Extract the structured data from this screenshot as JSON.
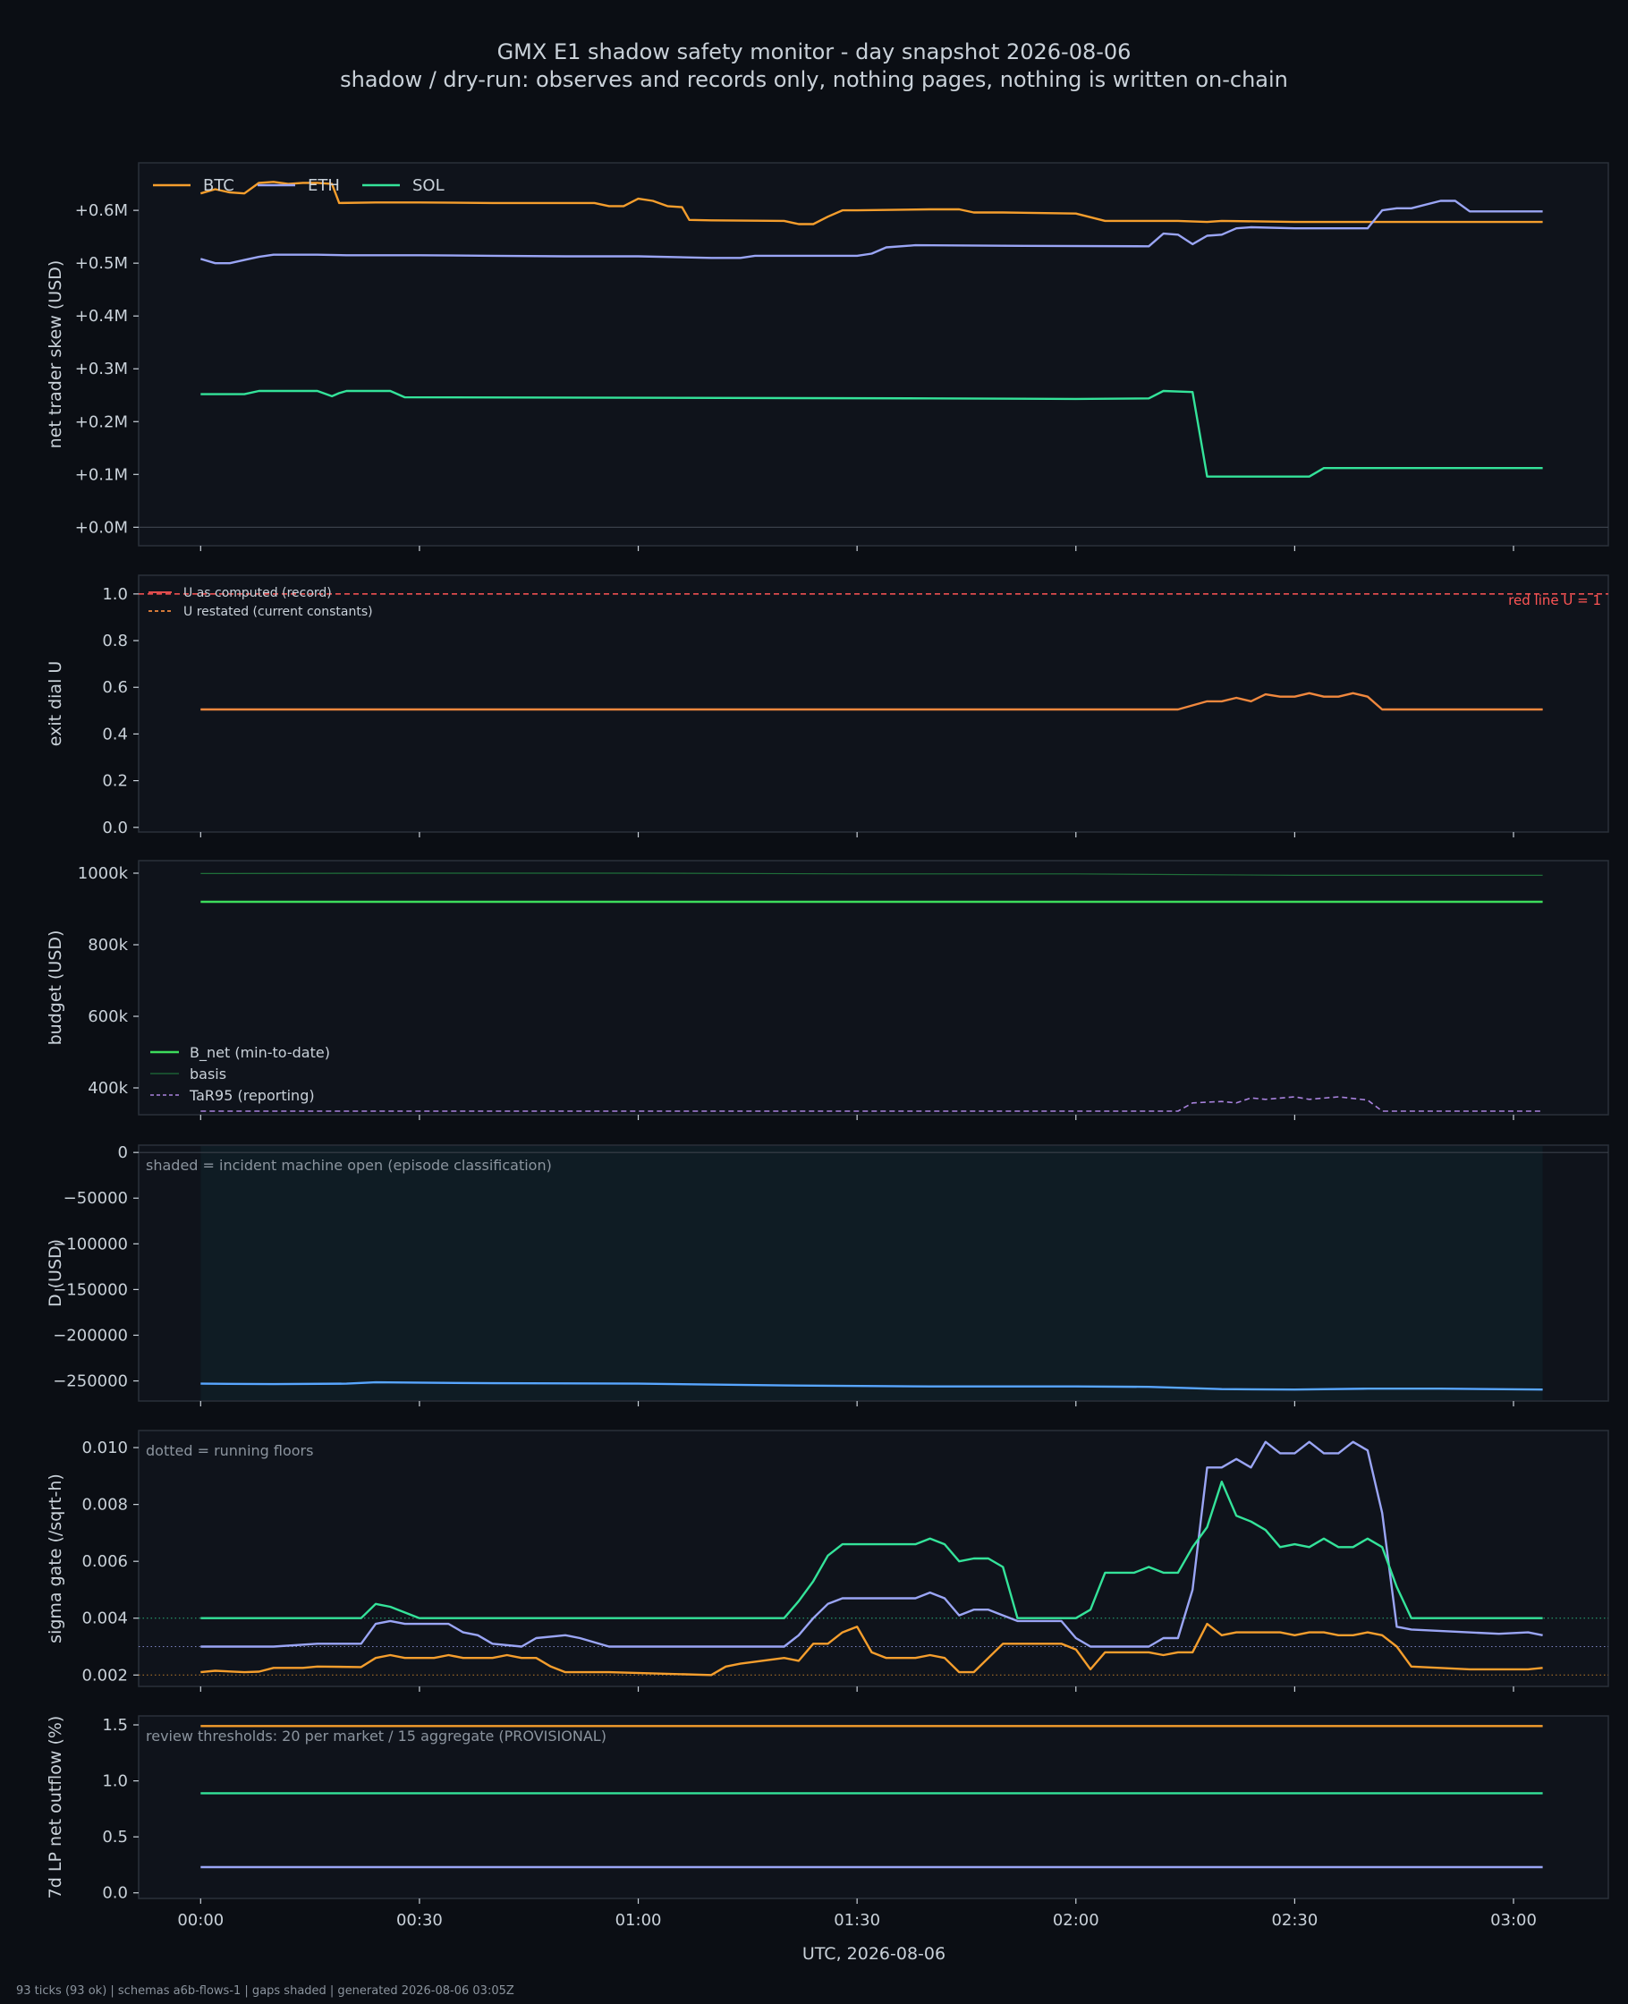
{
  "header": {
    "title": "GMX E1 shadow safety monitor - day snapshot 2026-08-06",
    "subtitle": "shadow / dry-run: observes and records only, nothing pages, nothing is written on-chain"
  },
  "footer": "93 ticks (93 ok) | schemas a6b-flows-1 | gaps shaded | generated 2026-08-06 03:05Z",
  "xaxis": {
    "label": "UTC, 2026-08-06",
    "ticks": [
      0,
      30,
      60,
      90,
      120,
      150,
      180
    ],
    "tick_labels": [
      "00:00",
      "00:30",
      "01:00",
      "01:30",
      "02:00",
      "02:30",
      "03:00"
    ],
    "xlim": [
      -8.5,
      193
    ]
  },
  "colors": {
    "background": "#0b0e14",
    "panel": "#0f131b",
    "panel_border": "#2a303a",
    "text": "#c9d1d9",
    "muted": "#8b949e",
    "btc": "#f59e2d",
    "eth": "#9aa5f5",
    "sol": "#34e39a",
    "u_record": "#f0883e",
    "redline": "#ff5555",
    "b_net": "#3ddc5c",
    "basis": "#1f6f3a",
    "tar95": "#a882dd",
    "d_line": "#58a6ff",
    "incident": "#0f1c24"
  },
  "chart_data": [
    {
      "type": "line",
      "ylabel": "net trader skew (USD)",
      "ylim": [
        -35000,
        690000
      ],
      "yticks": [
        0,
        100000,
        200000,
        300000,
        400000,
        500000,
        600000
      ],
      "ytick_labels": [
        "+0.0M",
        "+0.1M",
        "+0.2M",
        "+0.3M",
        "+0.4M",
        "+0.5M",
        "+0.6M"
      ],
      "zero_line": true,
      "legend": "top-left",
      "legend_style": "horizontal",
      "series": [
        {
          "name": "BTC",
          "color_key": "btc",
          "x": [
            0,
            2,
            4,
            6,
            8,
            10,
            12,
            14,
            16,
            18,
            19,
            24,
            30,
            40,
            50,
            54,
            56,
            58,
            60,
            62,
            64,
            66,
            67,
            70,
            80,
            82,
            84,
            86,
            88,
            90,
            100,
            104,
            106,
            110,
            120,
            124,
            134,
            138,
            140,
            150,
            170,
            184
          ],
          "y": [
            632000,
            640000,
            634000,
            632000,
            652000,
            654000,
            650000,
            652000,
            652000,
            650000,
            614000,
            615000,
            615000,
            614000,
            614000,
            614000,
            608000,
            608000,
            622000,
            618000,
            608000,
            606000,
            582000,
            581000,
            580000,
            574000,
            574000,
            588000,
            600000,
            600000,
            602000,
            602000,
            596000,
            596000,
            594000,
            580000,
            580000,
            578000,
            580000,
            578000,
            578000,
            578000
          ]
        },
        {
          "name": "ETH",
          "color_key": "eth",
          "x": [
            0,
            2,
            4,
            6,
            8,
            10,
            12,
            16,
            20,
            30,
            40,
            50,
            60,
            70,
            74,
            76,
            90,
            92,
            94,
            98,
            110,
            130,
            132,
            134,
            136,
            138,
            140,
            142,
            144,
            150,
            160,
            162,
            164,
            166,
            170,
            172,
            174,
            184
          ],
          "y": [
            508000,
            500000,
            500000,
            506000,
            512000,
            516000,
            516000,
            516000,
            515000,
            515000,
            514000,
            513000,
            513000,
            510000,
            510000,
            514000,
            514000,
            518000,
            530000,
            534000,
            533000,
            532000,
            556000,
            554000,
            536000,
            552000,
            554000,
            566000,
            568000,
            566000,
            566000,
            600000,
            604000,
            604000,
            618000,
            618000,
            598000,
            598000
          ]
        },
        {
          "name": "SOL",
          "color_key": "sol",
          "x": [
            0,
            6,
            8,
            16,
            18,
            19,
            20,
            26,
            28,
            100,
            120,
            130,
            132,
            136,
            138,
            152,
            154,
            184
          ],
          "y": [
            252000,
            252000,
            258000,
            258000,
            248000,
            254000,
            258000,
            258000,
            246000,
            244000,
            243000,
            244000,
            258000,
            256000,
            96000,
            96000,
            112000,
            112000
          ]
        }
      ]
    },
    {
      "type": "line",
      "ylabel": "exit dial U",
      "ylim": [
        -0.02,
        1.08
      ],
      "yticks": [
        0,
        0.2,
        0.4,
        0.6,
        0.8,
        1
      ],
      "ytick_labels": [
        "0.0",
        "0.2",
        "0.4",
        "0.6",
        "0.8",
        "1.0"
      ],
      "legend": "top-left",
      "legend_style": "vertical-small",
      "refline": {
        "y": 1.0,
        "color_key": "redline",
        "label": "red line U = 1"
      },
      "series": [
        {
          "name": "U as computed (record)",
          "color_key": "u_record",
          "style": "solid",
          "in_legend_color": "redline",
          "x": [
            0,
            134,
            138,
            140,
            142,
            144,
            146,
            148,
            150,
            152,
            154,
            156,
            158,
            160,
            162,
            164,
            166,
            184
          ],
          "y": [
            0.505,
            0.505,
            0.54,
            0.54,
            0.555,
            0.54,
            0.57,
            0.56,
            0.56,
            0.575,
            0.56,
            0.56,
            0.575,
            0.56,
            0.505,
            0.505,
            0.505,
            0.505
          ]
        },
        {
          "name": "U restated (current constants)",
          "color_key": "u_record",
          "style": "dashed",
          "x": [
            0,
            134,
            138,
            140,
            142,
            144,
            146,
            148,
            150,
            152,
            154,
            156,
            158,
            160,
            162,
            164,
            166,
            184
          ],
          "y": [
            0.505,
            0.505,
            0.54,
            0.54,
            0.555,
            0.54,
            0.57,
            0.56,
            0.56,
            0.575,
            0.56,
            0.56,
            0.575,
            0.56,
            0.505,
            0.505,
            0.505,
            0.505
          ]
        }
      ]
    },
    {
      "type": "line",
      "ylabel": "budget (USD)",
      "ylim": [
        325000,
        1035000
      ],
      "yticks": [
        400000,
        600000,
        800000,
        1000000
      ],
      "ytick_labels": [
        "400k",
        "600k",
        "800k",
        "1000k"
      ],
      "legend": "lower-left",
      "legend_style": "vertical",
      "series": [
        {
          "name": "B_net (min-to-date)",
          "color_key": "b_net",
          "style": "solid",
          "x": [
            0,
            184
          ],
          "y": [
            920000,
            920000
          ]
        },
        {
          "name": "basis",
          "color_key": "basis",
          "style": "thin",
          "x": [
            0,
            30,
            60,
            90,
            120,
            150,
            184
          ],
          "y": [
            999000,
            1000000,
            1000000,
            998000,
            998000,
            994000,
            994000
          ]
        },
        {
          "name": "TaR95 (reporting)",
          "color_key": "tar95",
          "style": "dashed",
          "x": [
            0,
            134,
            136,
            140,
            142,
            144,
            146,
            150,
            152,
            156,
            160,
            162,
            184
          ],
          "y": [
            335000,
            335000,
            358000,
            362000,
            358000,
            372000,
            368000,
            375000,
            368000,
            375000,
            366000,
            335000,
            335000
          ]
        }
      ]
    },
    {
      "type": "line",
      "ylabel": "D (USD)",
      "ylim": [
        -272000,
        8000
      ],
      "yticks": [
        0,
        -50000,
        -100000,
        -150000,
        -200000,
        -250000
      ],
      "ytick_labels": [
        "0",
        "−50000",
        "−100000",
        "−150000",
        "−200000",
        "−250000"
      ],
      "zero_line": true,
      "note": "shaded = incident machine open (episode classification)",
      "shaded_span": [
        0,
        184
      ],
      "series": [
        {
          "color_key": "d_line",
          "x": [
            0,
            10,
            20,
            24,
            40,
            60,
            80,
            100,
            120,
            130,
            140,
            150,
            160,
            170,
            184
          ],
          "y": [
            -253000,
            -253500,
            -253000,
            -251500,
            -252500,
            -253000,
            -255000,
            -256000,
            -256000,
            -256500,
            -259000,
            -259500,
            -258500,
            -258500,
            -259500
          ]
        }
      ]
    },
    {
      "type": "line",
      "ylabel": "sigma gate (/sqrt-h)",
      "ylim": [
        0.0016,
        0.0106
      ],
      "yticks": [
        0.002,
        0.004,
        0.006,
        0.008,
        0.01
      ],
      "ytick_labels": [
        "0.002",
        "0.004",
        "0.006",
        "0.008",
        "0.010"
      ],
      "note": "dotted = running floors",
      "floors": [
        {
          "y": 0.004,
          "color_key": "sol"
        },
        {
          "y": 0.003,
          "color_key": "eth"
        },
        {
          "y": 0.002,
          "color_key": "btc"
        }
      ],
      "series": [
        {
          "name": "BTC",
          "color_key": "btc",
          "x": [
            0,
            2,
            6,
            8,
            10,
            14,
            16,
            22,
            24,
            26,
            28,
            32,
            34,
            36,
            40,
            42,
            44,
            46,
            48,
            50,
            56,
            70,
            72,
            74,
            80,
            82,
            84,
            86,
            88,
            90,
            92,
            94,
            96,
            98,
            100,
            102,
            104,
            106,
            110,
            112,
            118,
            120,
            122,
            124,
            126,
            130,
            132,
            134,
            136,
            138,
            140,
            142,
            144,
            146,
            148,
            150,
            152,
            154,
            156,
            158,
            160,
            162,
            164,
            166,
            174,
            182,
            184
          ],
          "y": [
            0.0021,
            0.00215,
            0.0021,
            0.00212,
            0.00225,
            0.00225,
            0.0023,
            0.00228,
            0.0026,
            0.0027,
            0.0026,
            0.0026,
            0.0027,
            0.0026,
            0.0026,
            0.0027,
            0.0026,
            0.0026,
            0.0023,
            0.0021,
            0.0021,
            0.002,
            0.0023,
            0.0024,
            0.0026,
            0.0025,
            0.0031,
            0.0031,
            0.0035,
            0.0037,
            0.0028,
            0.0026,
            0.0026,
            0.0026,
            0.0027,
            0.0026,
            0.0021,
            0.0021,
            0.0031,
            0.0031,
            0.0031,
            0.0029,
            0.0022,
            0.0028,
            0.0028,
            0.0028,
            0.0027,
            0.0028,
            0.0028,
            0.0038,
            0.0034,
            0.0035,
            0.0035,
            0.0035,
            0.0035,
            0.0034,
            0.0035,
            0.0035,
            0.0034,
            0.0034,
            0.0035,
            0.0034,
            0.003,
            0.0023,
            0.0022,
            0.0022,
            0.00225
          ]
        },
        {
          "name": "ETH",
          "color_key": "eth",
          "x": [
            0,
            10,
            16,
            20,
            22,
            24,
            26,
            28,
            30,
            34,
            36,
            38,
            40,
            44,
            46,
            50,
            52,
            56,
            58,
            60,
            80,
            82,
            84,
            86,
            88,
            90,
            98,
            100,
            102,
            104,
            106,
            108,
            110,
            112,
            114,
            118,
            120,
            122,
            124,
            130,
            132,
            134,
            136,
            138,
            140,
            142,
            144,
            146,
            148,
            150,
            152,
            154,
            156,
            158,
            160,
            162,
            164,
            166,
            178,
            182,
            184
          ],
          "y": [
            0.003,
            0.003,
            0.0031,
            0.0031,
            0.0031,
            0.0038,
            0.0039,
            0.0038,
            0.0038,
            0.0038,
            0.0035,
            0.0034,
            0.0031,
            0.003,
            0.0033,
            0.0034,
            0.0033,
            0.003,
            0.003,
            0.003,
            0.003,
            0.0034,
            0.004,
            0.0045,
            0.0047,
            0.0047,
            0.0047,
            0.0049,
            0.0047,
            0.0041,
            0.0043,
            0.0043,
            0.0041,
            0.0039,
            0.0039,
            0.0039,
            0.0033,
            0.003,
            0.003,
            0.003,
            0.0033,
            0.0033,
            0.005,
            0.0093,
            0.0093,
            0.0096,
            0.0093,
            0.0102,
            0.0098,
            0.0098,
            0.0102,
            0.0098,
            0.0098,
            0.0102,
            0.0099,
            0.0077,
            0.0037,
            0.0036,
            0.00345,
            0.0035,
            0.0034
          ]
        },
        {
          "name": "SOL",
          "color_key": "sol",
          "x": [
            0,
            22,
            24,
            26,
            28,
            30,
            80,
            82,
            84,
            86,
            88,
            90,
            96,
            98,
            100,
            102,
            104,
            106,
            108,
            110,
            112,
            114,
            116,
            118,
            120,
            122,
            124,
            126,
            128,
            130,
            132,
            134,
            136,
            138,
            140,
            142,
            144,
            146,
            148,
            150,
            152,
            154,
            156,
            158,
            160,
            162,
            164,
            166,
            184
          ],
          "y": [
            0.004,
            0.004,
            0.0045,
            0.0044,
            0.0042,
            0.004,
            0.004,
            0.0046,
            0.0053,
            0.0062,
            0.0066,
            0.0066,
            0.0066,
            0.0066,
            0.0068,
            0.0066,
            0.006,
            0.0061,
            0.0061,
            0.0058,
            0.004,
            0.004,
            0.004,
            0.004,
            0.004,
            0.0043,
            0.0056,
            0.0056,
            0.0056,
            0.0058,
            0.0056,
            0.0056,
            0.0065,
            0.0072,
            0.0088,
            0.0076,
            0.0074,
            0.0071,
            0.0065,
            0.0066,
            0.0065,
            0.0068,
            0.0065,
            0.0065,
            0.0068,
            0.0065,
            0.0051,
            0.004,
            0.004
          ]
        }
      ]
    },
    {
      "type": "line",
      "ylabel": "7d LP net outflow (%)",
      "ylim": [
        -0.05,
        1.58
      ],
      "yticks": [
        0,
        0.5,
        1.0,
        1.5
      ],
      "ytick_labels": [
        "0.0",
        "0.5",
        "1.0",
        "1.5"
      ],
      "note": "review thresholds: 20 per market / 15 aggregate (PROVISIONAL)",
      "show_xticklabels": true,
      "series": [
        {
          "name": "BTC",
          "color_key": "btc",
          "x": [
            0,
            184
          ],
          "y": [
            1.49,
            1.49
          ]
        },
        {
          "name": "SOL",
          "color_key": "sol",
          "x": [
            0,
            184
          ],
          "y": [
            0.89,
            0.89
          ]
        },
        {
          "name": "ETH",
          "color_key": "eth",
          "x": [
            0,
            184
          ],
          "y": [
            0.23,
            0.23
          ]
        }
      ]
    }
  ]
}
